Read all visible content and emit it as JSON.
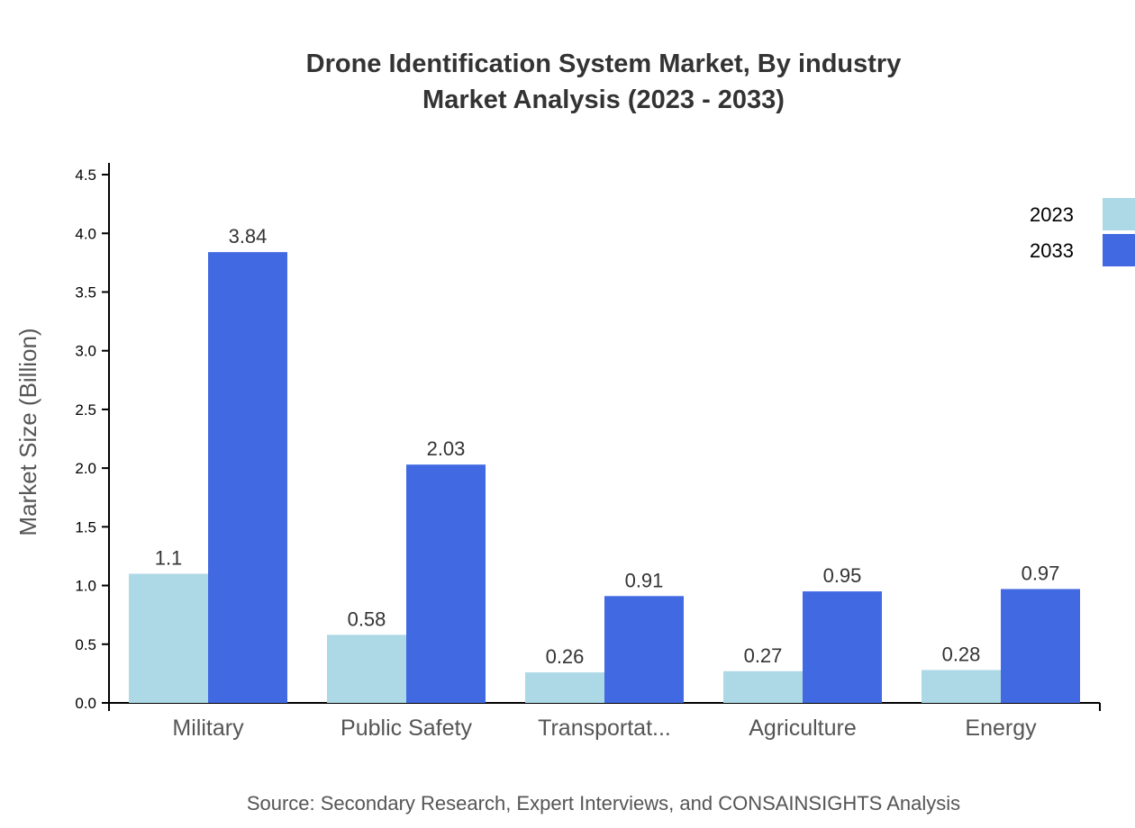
{
  "chart_data": {
    "type": "bar",
    "title": [
      "Drone Identification System Market, By industry",
      "Market Analysis (2023 - 2033)"
    ],
    "ylabel": "Market Size (Billion)",
    "xlabel": "",
    "categories": [
      "Military",
      "Public Safety",
      "Transportat...",
      "Agriculture",
      "Energy"
    ],
    "series": [
      {
        "name": "2023",
        "color": "#add8e6",
        "values": [
          1.1,
          0.58,
          0.26,
          0.27,
          0.28
        ]
      },
      {
        "name": "2033",
        "color": "#4169e1",
        "values": [
          3.84,
          2.03,
          0.91,
          0.95,
          0.97
        ]
      }
    ],
    "ylim": [
      0,
      4.6
    ],
    "yticks": [
      0,
      0.5,
      1,
      1.5,
      2,
      2.5,
      3,
      3.5,
      4,
      4.5
    ],
    "grid": false,
    "legend": "top-right",
    "source": "Source: Secondary Research, Expert Interviews, and CONSAINSIGHTS Analysis"
  }
}
